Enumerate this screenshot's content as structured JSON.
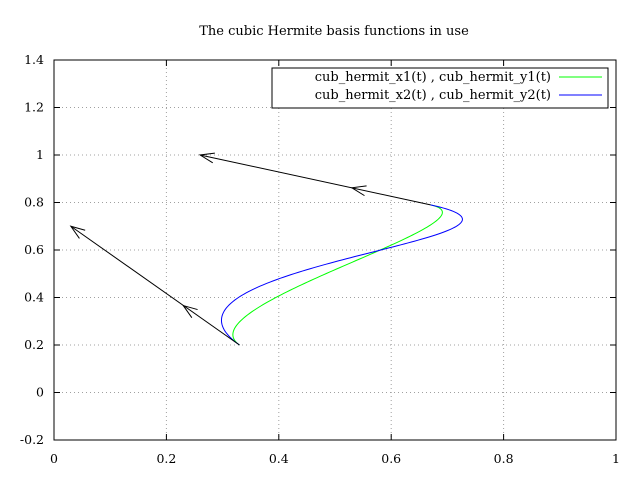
{
  "chart_data": {
    "type": "line",
    "title": "The cubic Hermite basis functions in use",
    "xlim": [
      0,
      1
    ],
    "ylim": [
      -0.2,
      1.4
    ],
    "x_ticks": [
      "0",
      "0.2",
      "0.4",
      "0.6",
      "0.8",
      "1"
    ],
    "y_ticks": [
      "-0.2",
      "0",
      "0.2",
      "0.4",
      "0.6",
      "0.8",
      "1",
      "1.2",
      "1.4"
    ],
    "grid": true,
    "legend_position": "top-right",
    "series": [
      {
        "name": "cub_hermit_x1(t) , cub_hermit_y1(t)",
        "color": "#00ff00",
        "start": [
          0.33,
          0.2
        ],
        "end": [
          0.67,
          0.79
        ],
        "start_tangent": [
          -0.3,
          0.5
        ],
        "end_tangent": [
          -0.41,
          0.21
        ]
      },
      {
        "name": "cub_hermit_x2(t) , cub_hermit_y2(t)",
        "color": "#0000ff",
        "start": [
          0.33,
          0.2
        ],
        "end": [
          0.67,
          0.79
        ],
        "start_tangent": [
          -0.6,
          1.0
        ],
        "end_tangent": [
          -0.82,
          0.42
        ]
      }
    ],
    "arrows": [
      {
        "from": [
          0.33,
          0.2
        ],
        "to": [
          0.03,
          0.7
        ],
        "mid_head": [
          0.23,
          0.366
        ]
      },
      {
        "from": [
          0.67,
          0.79
        ],
        "to": [
          0.26,
          1.0
        ],
        "mid_head": [
          0.53,
          0.862
        ]
      }
    ]
  }
}
